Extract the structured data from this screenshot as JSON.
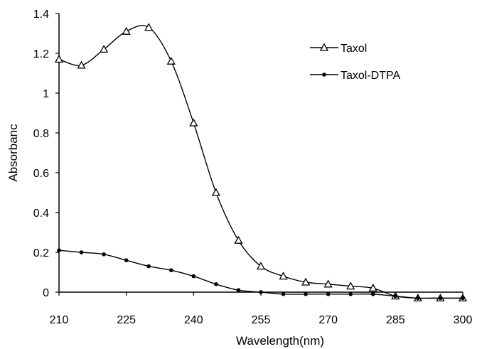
{
  "chart_data": {
    "type": "line",
    "title": "",
    "xlabel": "Wavelength(nm)",
    "ylabel": "Absorbanc",
    "xlim": [
      210,
      300
    ],
    "ylim": [
      0,
      1.4
    ],
    "x_ticks": [
      "210",
      "225",
      "240",
      "255",
      "270",
      "285",
      "300"
    ],
    "y_ticks": [
      "0",
      "0.2",
      "0.4",
      "0.6",
      "0.8",
      "1",
      "1.2",
      "1.4"
    ],
    "grid": false,
    "legend_position": "top-right",
    "series": [
      {
        "name": "Taxol",
        "marker": "triangle-open",
        "color": "#000000",
        "x": [
          210,
          215,
          220,
          225,
          230,
          235,
          240,
          245,
          250,
          255,
          260,
          265,
          270,
          275,
          280,
          285,
          290,
          295,
          300
        ],
        "y": [
          1.17,
          1.14,
          1.22,
          1.31,
          1.33,
          1.16,
          0.85,
          0.5,
          0.26,
          0.13,
          0.08,
          0.05,
          0.04,
          0.03,
          0.02,
          -0.02,
          -0.03,
          -0.03,
          -0.03
        ]
      },
      {
        "name": "Taxol-DTPA",
        "marker": "dot",
        "color": "#000000",
        "x": [
          210,
          215,
          220,
          225,
          230,
          235,
          240,
          245,
          250,
          255,
          260,
          265,
          270,
          275,
          280,
          285,
          290,
          295,
          300
        ],
        "y": [
          0.21,
          0.2,
          0.19,
          0.16,
          0.13,
          0.11,
          0.08,
          0.04,
          0.01,
          0.0,
          -0.01,
          -0.01,
          -0.01,
          -0.01,
          -0.01,
          -0.02,
          -0.03,
          -0.03,
          -0.03
        ]
      }
    ]
  }
}
